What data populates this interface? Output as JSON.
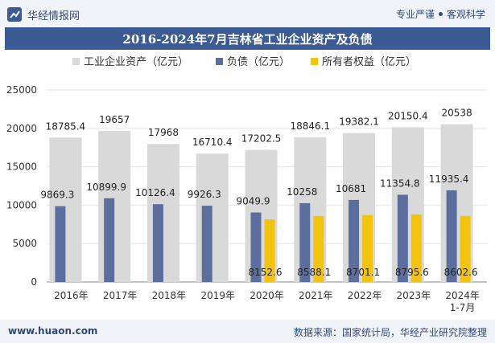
{
  "header": {
    "brand": "华经情报网",
    "tag1": "专业严谨",
    "tag2": "客观科学"
  },
  "footer": {
    "site": "www.huaon.com",
    "source": "数据来源：国家统计局，华经产业研究院整理"
  },
  "colors": {
    "assets": "#d9d9d9",
    "liabilities": "#5b6e9e",
    "equity": "#f2c30f",
    "header_bar": "#3c5a94"
  },
  "chart_data": {
    "type": "bar",
    "title": "2016-2024年7月吉林省工业企业资产及负债",
    "categories": [
      "2016年",
      "2017年",
      "2018年",
      "2019年",
      "2020年",
      "2021年",
      "2022年",
      "2023年",
      "2024年\n1-7月"
    ],
    "series": [
      {
        "name": "工业企业资产（亿元）",
        "values": [
          18785.4,
          19657,
          17968,
          16710.4,
          17202.5,
          18846.1,
          19382.1,
          20150.4,
          20538
        ],
        "labels": [
          "18785.4",
          "19657",
          "17968",
          "16710.4",
          "17202.5",
          "18846.1",
          "19382.1",
          "20150.4",
          "20538"
        ]
      },
      {
        "name": "负债（亿元）",
        "values": [
          9869.3,
          10899.9,
          10126.4,
          9926.3,
          9049.9,
          10258,
          10681,
          11354.8,
          11935.4
        ],
        "labels": [
          "9869.3",
          "10899.9",
          "10126.4",
          "9926.3",
          "9049.9",
          "10258",
          "10681",
          "11354.8",
          "11935.4"
        ]
      },
      {
        "name": "所有者权益（亿元）",
        "values": [
          null,
          null,
          null,
          null,
          8152.6,
          8588.1,
          8701.1,
          8795.6,
          8602.6
        ],
        "labels": [
          "",
          "",
          "",
          "",
          "8152.6",
          "8588.1",
          "8701.1",
          "8795.6",
          "8602.6"
        ]
      }
    ],
    "yticks": [
      "0",
      "5000",
      "10000",
      "15000",
      "20000",
      "25000"
    ],
    "ylim": [
      0,
      25000
    ],
    "legend": "top"
  }
}
